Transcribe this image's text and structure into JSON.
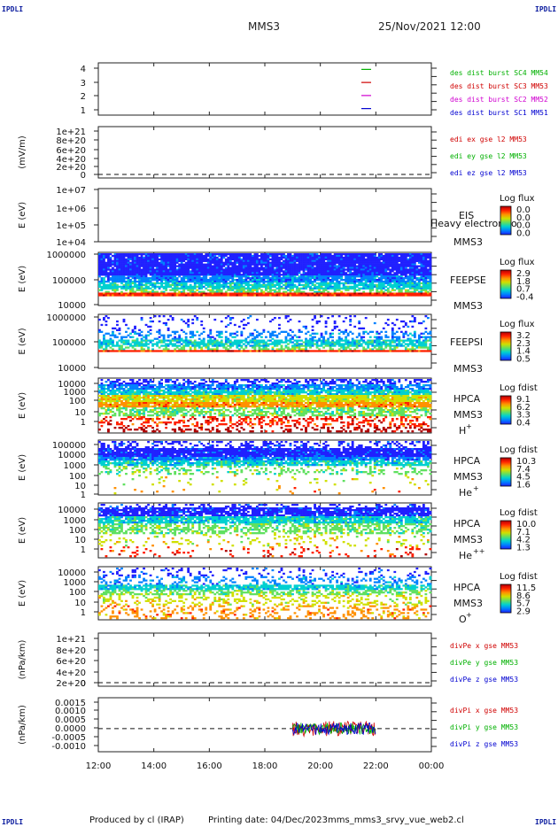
{
  "header": {
    "corner_label": "IPDLI",
    "spacecraft": "MMS3",
    "date": "25/Nov/2021 12:00"
  },
  "footer": {
    "produced_by": "Produced by cl (IRAP)",
    "printing_date": "Printing date: 04/Dec/2023",
    "file": "mms_mms3_srvy_vue_web2.cl"
  },
  "colors": {
    "spectrogram": [
      "#ffffff",
      "#2020ff",
      "#0080ff",
      "#00d0d0",
      "#60e060",
      "#d0e000",
      "#ff9000",
      "#ff2000",
      "#b00000"
    ]
  },
  "chart_data": [
    {
      "type": "line",
      "panel": "burst",
      "ytick_labels": [
        "4",
        "3",
        "2",
        "1"
      ],
      "ylim": [
        0.5,
        4.5
      ],
      "series": [
        {
          "name": "des dist burst SC1 MM51",
          "color": "#0000d0",
          "value": 1
        },
        {
          "name": "des dist burst SC2 MM52",
          "color": "#d000d0",
          "value": 2
        },
        {
          "name": "des dist burst SC3 MM53",
          "color": "#d00000",
          "value": 3
        },
        {
          "name": "des dist burst SC4 MM54",
          "color": "#00b000",
          "value": 4
        }
      ]
    },
    {
      "type": "line",
      "panel": "edi",
      "ylabel": "(mV/m)",
      "ytick_labels": [
        "1e+21",
        "8e+20",
        "6e+20",
        "4e+20",
        "2e+20",
        "0"
      ],
      "ylim": [
        0,
        1e+21
      ],
      "series": [
        {
          "name": "edi ex gse l2 MM53",
          "color": "#d00000"
        },
        {
          "name": "edi ey gse l2 MM53",
          "color": "#00b000"
        },
        {
          "name": "edi ez gse l2 MM53",
          "color": "#0000d0"
        }
      ]
    },
    {
      "type": "heatmap",
      "panel": "EIS",
      "ylabel": "E (eV)",
      "ytick_labels": [
        "1e+07",
        "1e+06",
        "1e+05",
        "1e+04"
      ],
      "instrument": "EIS",
      "note": "Heavy electron to",
      "spacecraft": "MMS3",
      "colorbar_title": "Log flux",
      "colorbar_ticks": [
        "0.0",
        "0.0",
        "0.0",
        "0.0"
      ]
    },
    {
      "type": "heatmap",
      "panel": "FEEPSE",
      "ylabel": "E (eV)",
      "ytick_labels": [
        "1000000",
        "100000",
        "10000"
      ],
      "instrument": "FEEPSE",
      "spacecraft": "MMS3",
      "colorbar_title": "Log flux",
      "colorbar_ticks": [
        "2.9",
        "1.8",
        "0.7",
        "-0.4"
      ]
    },
    {
      "type": "heatmap",
      "panel": "FEEPSI",
      "ylabel": "E (eV)",
      "ytick_labels": [
        "1000000",
        "100000",
        "10000"
      ],
      "instrument": "FEEPSI",
      "spacecraft": "MMS3",
      "colorbar_title": "Log flux",
      "colorbar_ticks": [
        "3.2",
        "2.3",
        "1.4",
        "0.5"
      ]
    },
    {
      "type": "heatmap",
      "panel": "HPCA-H+",
      "ylabel": "E (eV)",
      "ytick_labels": [
        "10000",
        "1000",
        "100",
        "10",
        "1"
      ],
      "instrument": "HPCA",
      "spacecraft": "MMS3",
      "species": "H",
      "species_charge": "+",
      "colorbar_title": "Log fdist",
      "colorbar_ticks": [
        "9.1",
        "6.2",
        "3.3",
        "0.4"
      ]
    },
    {
      "type": "heatmap",
      "panel": "HPCA-He+",
      "ylabel": "E (eV)",
      "ytick_labels": [
        "100000",
        "10000",
        "1000",
        "100",
        "10",
        "1"
      ],
      "instrument": "HPCA",
      "spacecraft": "MMS3",
      "species": "He",
      "species_charge": "+",
      "colorbar_title": "Log fdist",
      "colorbar_ticks": [
        "10.3",
        "7.4",
        "4.5",
        "1.6"
      ]
    },
    {
      "type": "heatmap",
      "panel": "HPCA-He++",
      "ylabel": "E (eV)",
      "ytick_labels": [
        "10000",
        "1000",
        "100",
        "10",
        "1"
      ],
      "instrument": "HPCA",
      "spacecraft": "MMS3",
      "species": "He",
      "species_charge": "++",
      "colorbar_title": "Log fdist",
      "colorbar_ticks": [
        "10.0",
        "7.1",
        "4.2",
        "1.3"
      ]
    },
    {
      "type": "heatmap",
      "panel": "HPCA-O+",
      "ylabel": "E (eV)",
      "ytick_labels": [
        "10000",
        "1000",
        "100",
        "10",
        "1"
      ],
      "instrument": "HPCA",
      "spacecraft": "MMS3",
      "species": "O",
      "species_charge": "+",
      "colorbar_title": "Log fdist",
      "colorbar_ticks": [
        "11.5",
        "8.6",
        "5.7",
        "2.9"
      ]
    },
    {
      "type": "line",
      "panel": "divPe",
      "ylabel": "(nPa/km)",
      "ytick_labels": [
        "1e+21",
        "8e+20",
        "6e+20",
        "4e+20",
        "2e+20",
        "0"
      ],
      "ylim": [
        0,
        1e+21
      ],
      "series": [
        {
          "name": "divPe x gse MM53",
          "color": "#d00000"
        },
        {
          "name": "divPe y gse MM53",
          "color": "#00b000"
        },
        {
          "name": "divPe z gse MM53",
          "color": "#0000d0"
        }
      ]
    },
    {
      "type": "line",
      "panel": "divPi",
      "ylabel": "(nPa/km)",
      "ytick_labels": [
        "0.0015",
        "0.0010",
        "0.0005",
        "0.0000",
        "-0.0005",
        "-0.0010"
      ],
      "ylim": [
        -0.0012,
        0.0016
      ],
      "data_range": [
        "19:00",
        "22:00"
      ],
      "series": [
        {
          "name": "divPi x gse MM53",
          "color": "#d00000",
          "amplitude": 0.0004
        },
        {
          "name": "divPi y gse MM53",
          "color": "#00b000",
          "amplitude": 0.0003
        },
        {
          "name": "divPi z gse MM53",
          "color": "#0000d0",
          "amplitude": 0.0003
        }
      ]
    }
  ],
  "time_axis": {
    "tick_labels": [
      "12:00",
      "14:00",
      "16:00",
      "18:00",
      "20:00",
      "22:00",
      "00:00"
    ]
  }
}
